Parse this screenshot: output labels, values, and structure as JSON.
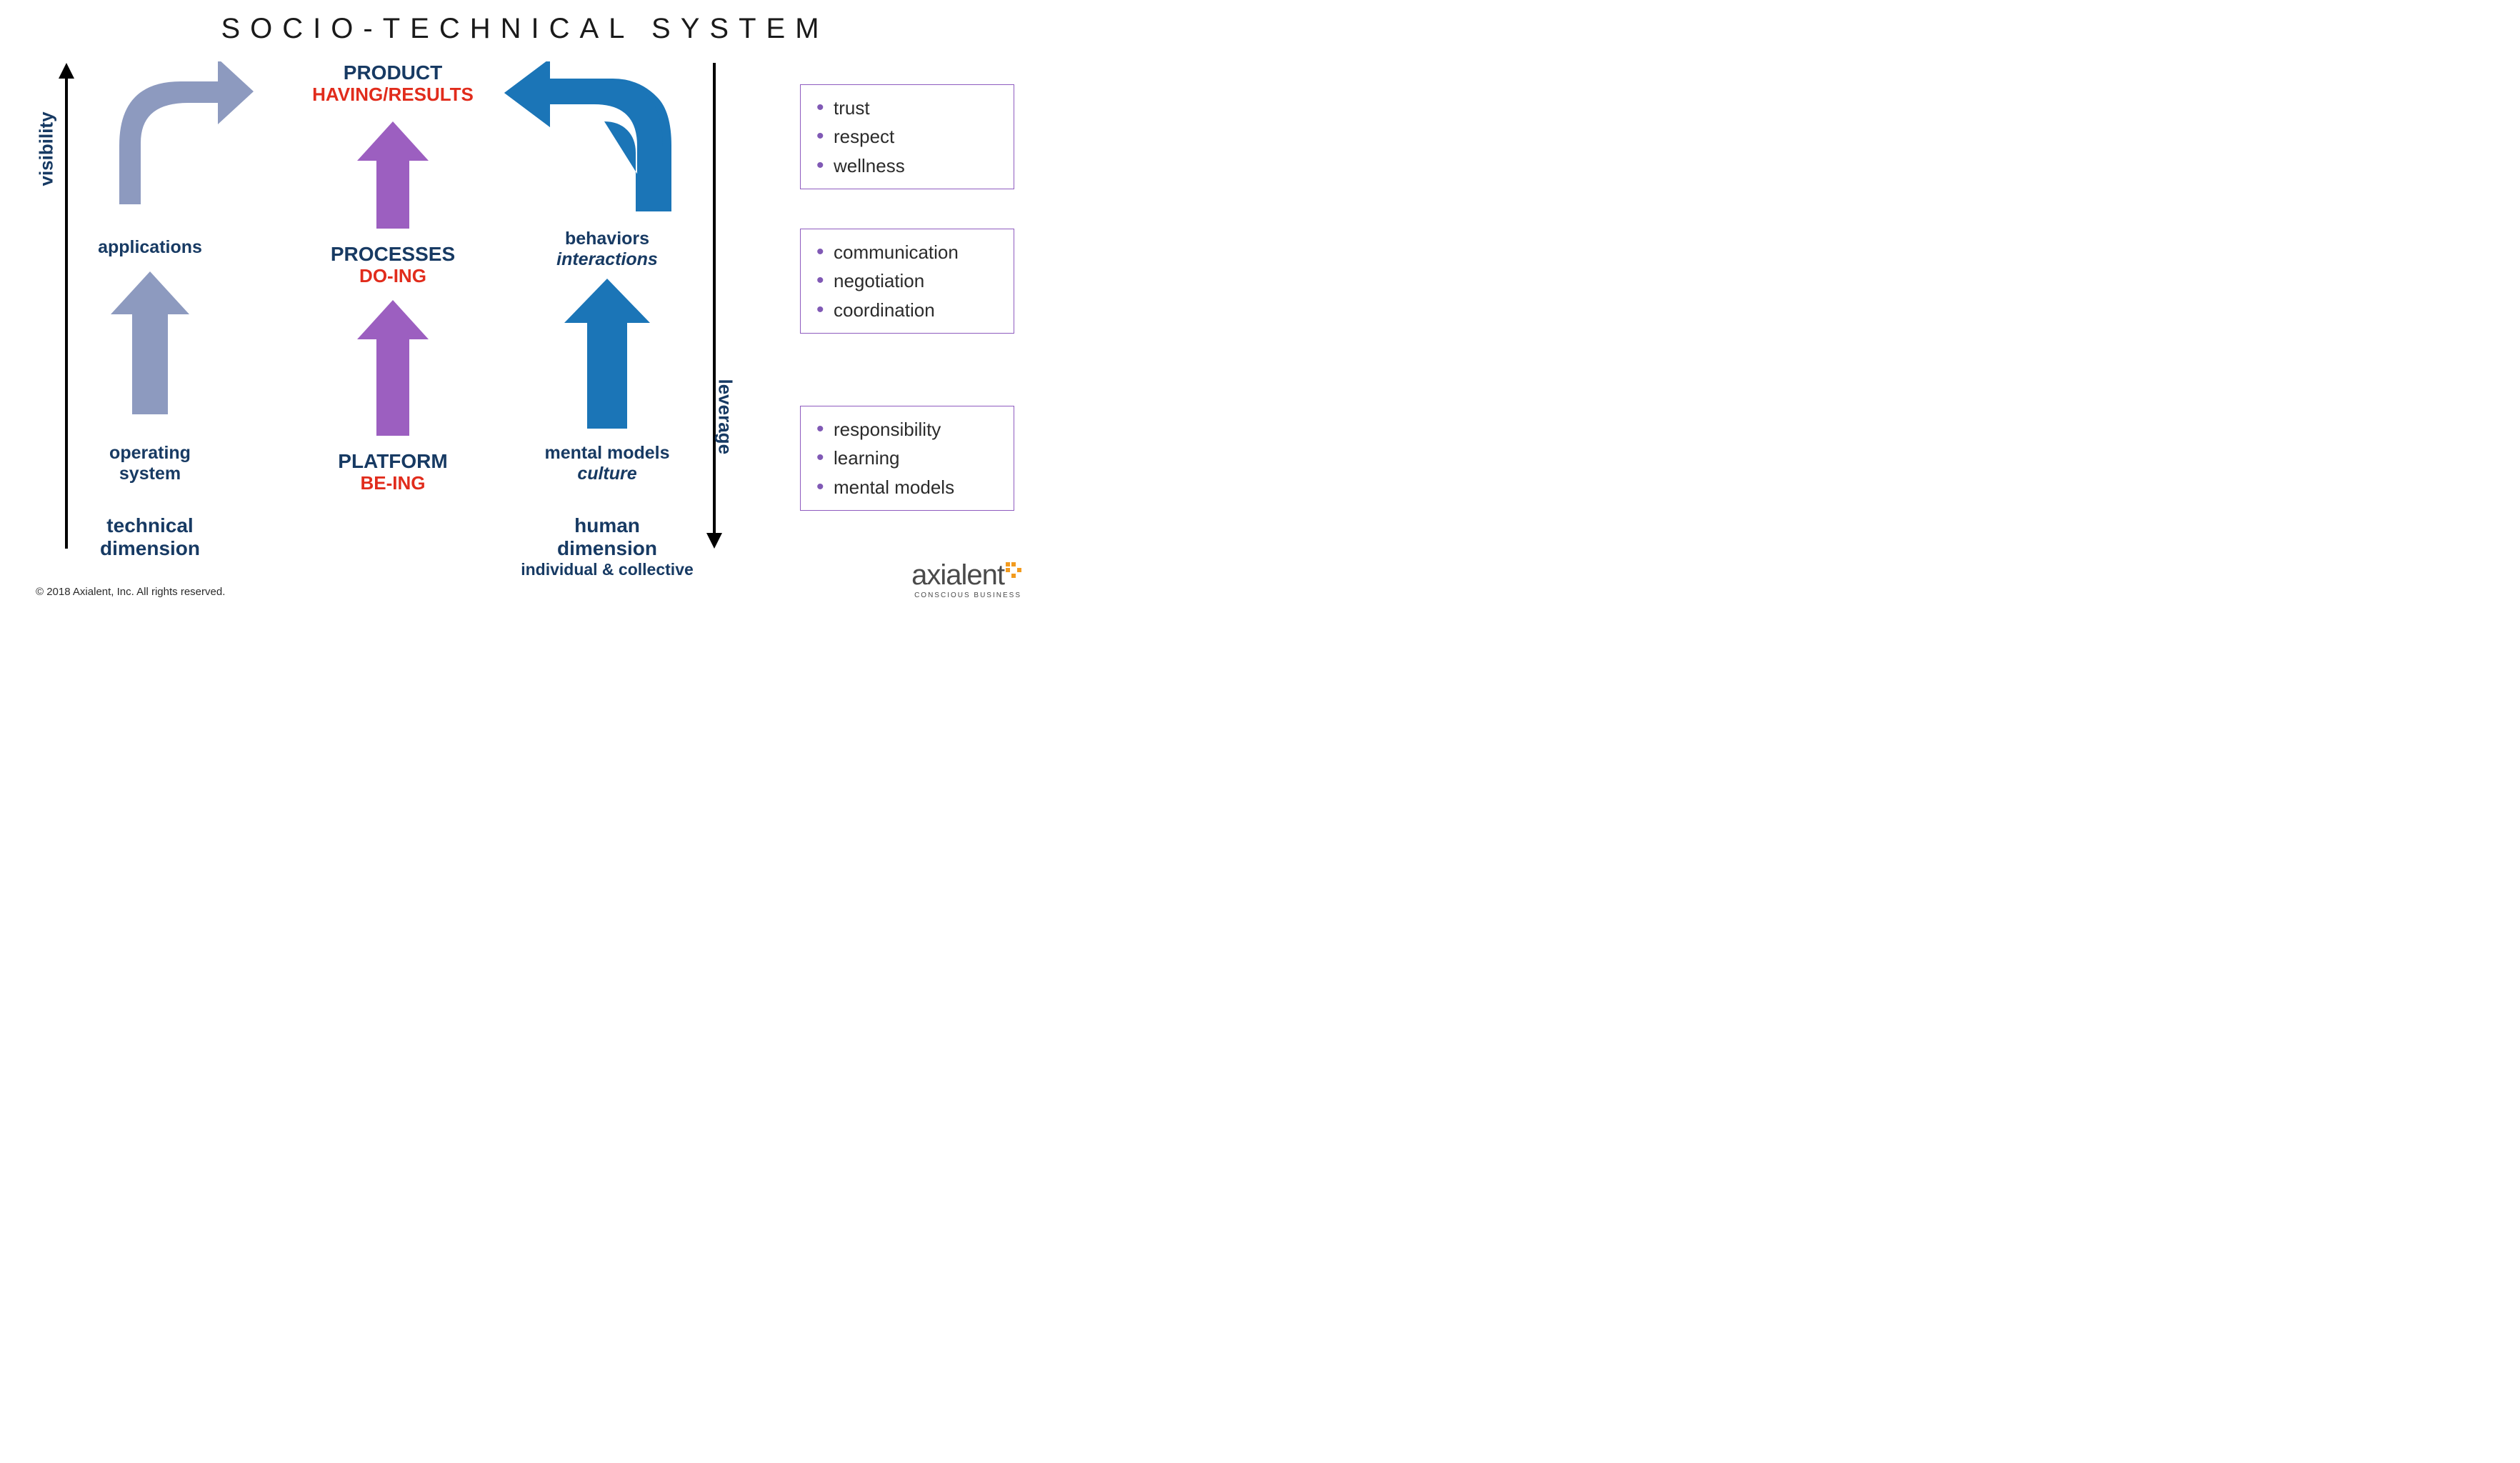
{
  "title": "SOCIO-TECHNICAL SYSTEM",
  "axes": {
    "left_label": "visibility",
    "right_label": "leverage",
    "axis_color": "#000000"
  },
  "levels": {
    "top": {
      "title": "PRODUCT",
      "subtitle": "HAVING/RESULTS"
    },
    "middle": {
      "title": "PROCESSES",
      "subtitle": "DO-ING"
    },
    "bottom": {
      "title": "PLATFORM",
      "subtitle": "BE-ING"
    }
  },
  "columns": {
    "left": {
      "mid_label": "applications",
      "bottom_label": "operating\nsystem",
      "dimension": "technical\ndimension",
      "arrow_color": "#8d9abf"
    },
    "center": {
      "arrow_color": "#9c5fc0"
    },
    "right": {
      "mid_label_line1": "behaviors",
      "mid_label_line2": "interactions",
      "bottom_label_line1": "mental models",
      "bottom_label_line2": "culture",
      "dimension": "human\ndimension",
      "dimension_sub": "individual & collective",
      "arrow_color": "#1b75b7"
    }
  },
  "boxes": {
    "border_color": "#8e5bbf",
    "bullet_color": "#8059b5",
    "top": [
      "trust",
      "respect",
      "wellness"
    ],
    "middle": [
      "communication",
      "negotiation",
      "coordination"
    ],
    "bottom": [
      "responsibility",
      "learning",
      "mental models"
    ]
  },
  "colors": {
    "navy": "#173a63",
    "red": "#e12c1c",
    "background": "#ffffff"
  },
  "footer": {
    "copyright": "© 2018 Axialent, Inc. All rights reserved.",
    "logo_text": "axialent",
    "logo_tag": "CONSCIOUS BUSINESS",
    "logo_accent_color": "#f29b1f"
  }
}
